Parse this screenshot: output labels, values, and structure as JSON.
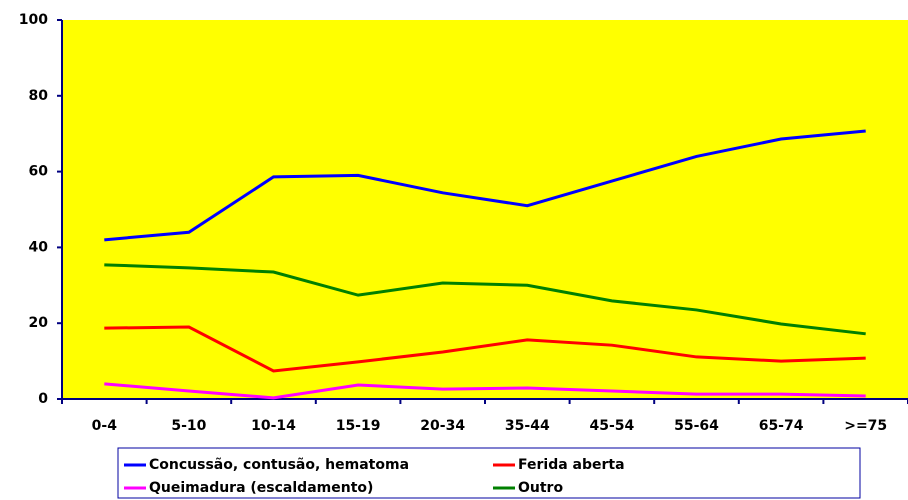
{
  "chart_data": {
    "type": "line",
    "categories": [
      "0-4",
      "5-10",
      "10-14",
      "15-19",
      "20-34",
      "35-44",
      "45-54",
      "55-64",
      "65-74",
      ">=75"
    ],
    "series": [
      {
        "name": "Concussão, contusão, hematoma",
        "color": "#0000ff",
        "values": [
          42,
          44,
          58.6,
          59,
          54.4,
          51,
          57.5,
          64,
          68.6,
          70.7
        ]
      },
      {
        "name": "Ferida aberta",
        "color": "#ff0000",
        "values": [
          18.7,
          19,
          7.4,
          9.8,
          12.4,
          15.6,
          14.2,
          11.1,
          10,
          10.8
        ]
      },
      {
        "name": "Queimadura (escaldamento)",
        "color": "#ff00ff",
        "values": [
          4,
          2.1,
          0.3,
          3.7,
          2.6,
          2.9,
          2.1,
          1.3,
          1.3,
          0.8
        ]
      },
      {
        "name": "Outro",
        "color": "#008000",
        "values": [
          35.4,
          34.6,
          33.5,
          27.4,
          30.6,
          30,
          25.9,
          23.5,
          19.8,
          17.2
        ]
      }
    ],
    "ylim": [
      0,
      100
    ],
    "yticks": [
      0,
      20,
      40,
      60,
      80,
      100
    ],
    "plot_background": "#ffff00"
  }
}
